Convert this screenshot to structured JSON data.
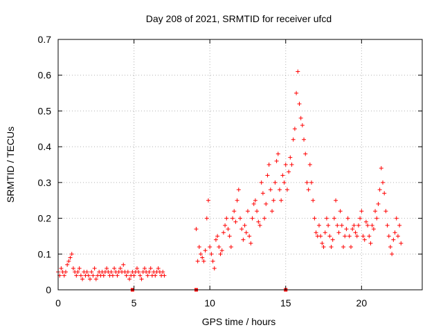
{
  "chart_data": {
    "type": "scatter",
    "title": "Day 208 of 2021, SRMTID for receiver ufcd",
    "xlabel": "GPS time / hours",
    "ylabel": "SRMTID / TECUs",
    "xlim": [
      0,
      24
    ],
    "ylim": [
      0,
      0.7
    ],
    "xticks": [
      0,
      5,
      10,
      15,
      20
    ],
    "yticks": [
      0,
      0.1,
      0.2,
      0.3,
      0.4,
      0.5,
      0.6,
      0.7
    ],
    "grid": true,
    "marker_color": "#ff0000",
    "series": [
      {
        "name": "SRMTID",
        "x": [
          0.0,
          0.1,
          0.2,
          0.3,
          0.4,
          0.5,
          0.6,
          0.7,
          0.8,
          0.9,
          1.0,
          1.1,
          1.2,
          1.3,
          1.4,
          1.5,
          1.6,
          1.7,
          1.8,
          1.9,
          2.0,
          2.1,
          2.2,
          2.3,
          2.4,
          2.5,
          2.6,
          2.7,
          2.8,
          2.9,
          3.0,
          3.1,
          3.2,
          3.3,
          3.4,
          3.5,
          3.6,
          3.7,
          3.8,
          3.9,
          4.0,
          4.1,
          4.2,
          4.3,
          4.4,
          4.5,
          4.6,
          4.7,
          4.8,
          4.9,
          5.0,
          5.1,
          5.2,
          5.3,
          5.4,
          5.5,
          5.6,
          5.7,
          5.8,
          5.9,
          6.0,
          6.1,
          6.2,
          6.3,
          6.4,
          6.5,
          6.6,
          6.7,
          6.8,
          6.9,
          7.0,
          9.1,
          9.2,
          9.3,
          9.4,
          9.5,
          9.6,
          9.7,
          9.8,
          9.9,
          10.0,
          10.1,
          10.2,
          10.3,
          10.4,
          10.5,
          10.6,
          10.7,
          10.8,
          10.9,
          11.0,
          11.1,
          11.2,
          11.3,
          11.4,
          11.5,
          11.6,
          11.7,
          11.8,
          11.9,
          12.0,
          12.1,
          12.2,
          12.3,
          12.4,
          12.5,
          12.6,
          12.7,
          12.8,
          12.9,
          13.0,
          13.1,
          13.2,
          13.3,
          13.4,
          13.5,
          13.6,
          13.7,
          13.8,
          13.9,
          14.0,
          14.1,
          14.2,
          14.3,
          14.4,
          14.5,
          14.6,
          14.7,
          14.8,
          14.9,
          15.0,
          15.1,
          15.2,
          15.3,
          15.4,
          15.5,
          15.6,
          15.7,
          15.8,
          15.9,
          16.0,
          16.1,
          16.2,
          16.3,
          16.4,
          16.5,
          16.6,
          16.7,
          16.8,
          16.9,
          17.0,
          17.1,
          17.2,
          17.3,
          17.4,
          17.5,
          17.6,
          17.7,
          17.8,
          17.9,
          18.0,
          18.1,
          18.2,
          18.3,
          18.4,
          18.5,
          18.6,
          18.7,
          18.8,
          18.9,
          19.0,
          19.1,
          19.2,
          19.3,
          19.4,
          19.5,
          19.6,
          19.7,
          19.8,
          19.9,
          20.0,
          20.1,
          20.2,
          20.3,
          20.4,
          20.5,
          20.6,
          20.7,
          20.8,
          20.9,
          21.0,
          21.1,
          21.2,
          21.3,
          21.4,
          21.5,
          21.6,
          21.7,
          21.8,
          21.9,
          22.0,
          22.1,
          22.2,
          22.3,
          22.4,
          22.5,
          22.6,
          4.9,
          9.1,
          15.0
        ],
        "y": [
          0.05,
          0.04,
          0.06,
          0.05,
          0.04,
          0.05,
          0.07,
          0.08,
          0.09,
          0.1,
          0.06,
          0.05,
          0.04,
          0.05,
          0.06,
          0.04,
          0.03,
          0.05,
          0.04,
          0.05,
          0.04,
          0.03,
          0.05,
          0.04,
          0.06,
          0.03,
          0.04,
          0.05,
          0.04,
          0.05,
          0.04,
          0.05,
          0.06,
          0.05,
          0.04,
          0.05,
          0.04,
          0.06,
          0.05,
          0.04,
          0.05,
          0.06,
          0.05,
          0.07,
          0.05,
          0.04,
          0.05,
          0.03,
          0.04,
          0.05,
          0.04,
          0.05,
          0.06,
          0.05,
          0.04,
          0.03,
          0.05,
          0.06,
          0.05,
          0.04,
          0.05,
          0.06,
          0.04,
          0.05,
          0.04,
          0.05,
          0.06,
          0.05,
          0.04,
          0.05,
          0.04,
          0.17,
          0.08,
          0.12,
          0.1,
          0.09,
          0.08,
          0.11,
          0.2,
          0.25,
          0.12,
          0.1,
          0.08,
          0.06,
          0.14,
          0.15,
          0.12,
          0.1,
          0.11,
          0.16,
          0.18,
          0.2,
          0.17,
          0.15,
          0.12,
          0.2,
          0.22,
          0.19,
          0.25,
          0.28,
          0.2,
          0.17,
          0.14,
          0.18,
          0.16,
          0.22,
          0.15,
          0.13,
          0.2,
          0.24,
          0.25,
          0.22,
          0.19,
          0.18,
          0.3,
          0.27,
          0.2,
          0.24,
          0.32,
          0.35,
          0.28,
          0.22,
          0.25,
          0.3,
          0.36,
          0.38,
          0.28,
          0.25,
          0.32,
          0.3,
          0.35,
          0.28,
          0.33,
          0.37,
          0.35,
          0.42,
          0.45,
          0.55,
          0.61,
          0.52,
          0.48,
          0.46,
          0.42,
          0.38,
          0.3,
          0.28,
          0.35,
          0.3,
          0.25,
          0.2,
          0.16,
          0.15,
          0.18,
          0.15,
          0.13,
          0.12,
          0.16,
          0.2,
          0.18,
          0.15,
          0.12,
          0.14,
          0.2,
          0.25,
          0.18,
          0.16,
          0.22,
          0.18,
          0.12,
          0.15,
          0.17,
          0.2,
          0.15,
          0.12,
          0.17,
          0.18,
          0.16,
          0.15,
          0.18,
          0.2,
          0.22,
          0.15,
          0.14,
          0.19,
          0.18,
          0.15,
          0.13,
          0.18,
          0.17,
          0.22,
          0.2,
          0.24,
          0.28,
          0.34,
          0.3,
          0.27,
          0.22,
          0.18,
          0.15,
          0.12,
          0.1,
          0.14,
          0.16,
          0.2,
          0.15,
          0.18,
          0.13,
          0.0,
          0.0,
          0.0
        ]
      }
    ]
  }
}
